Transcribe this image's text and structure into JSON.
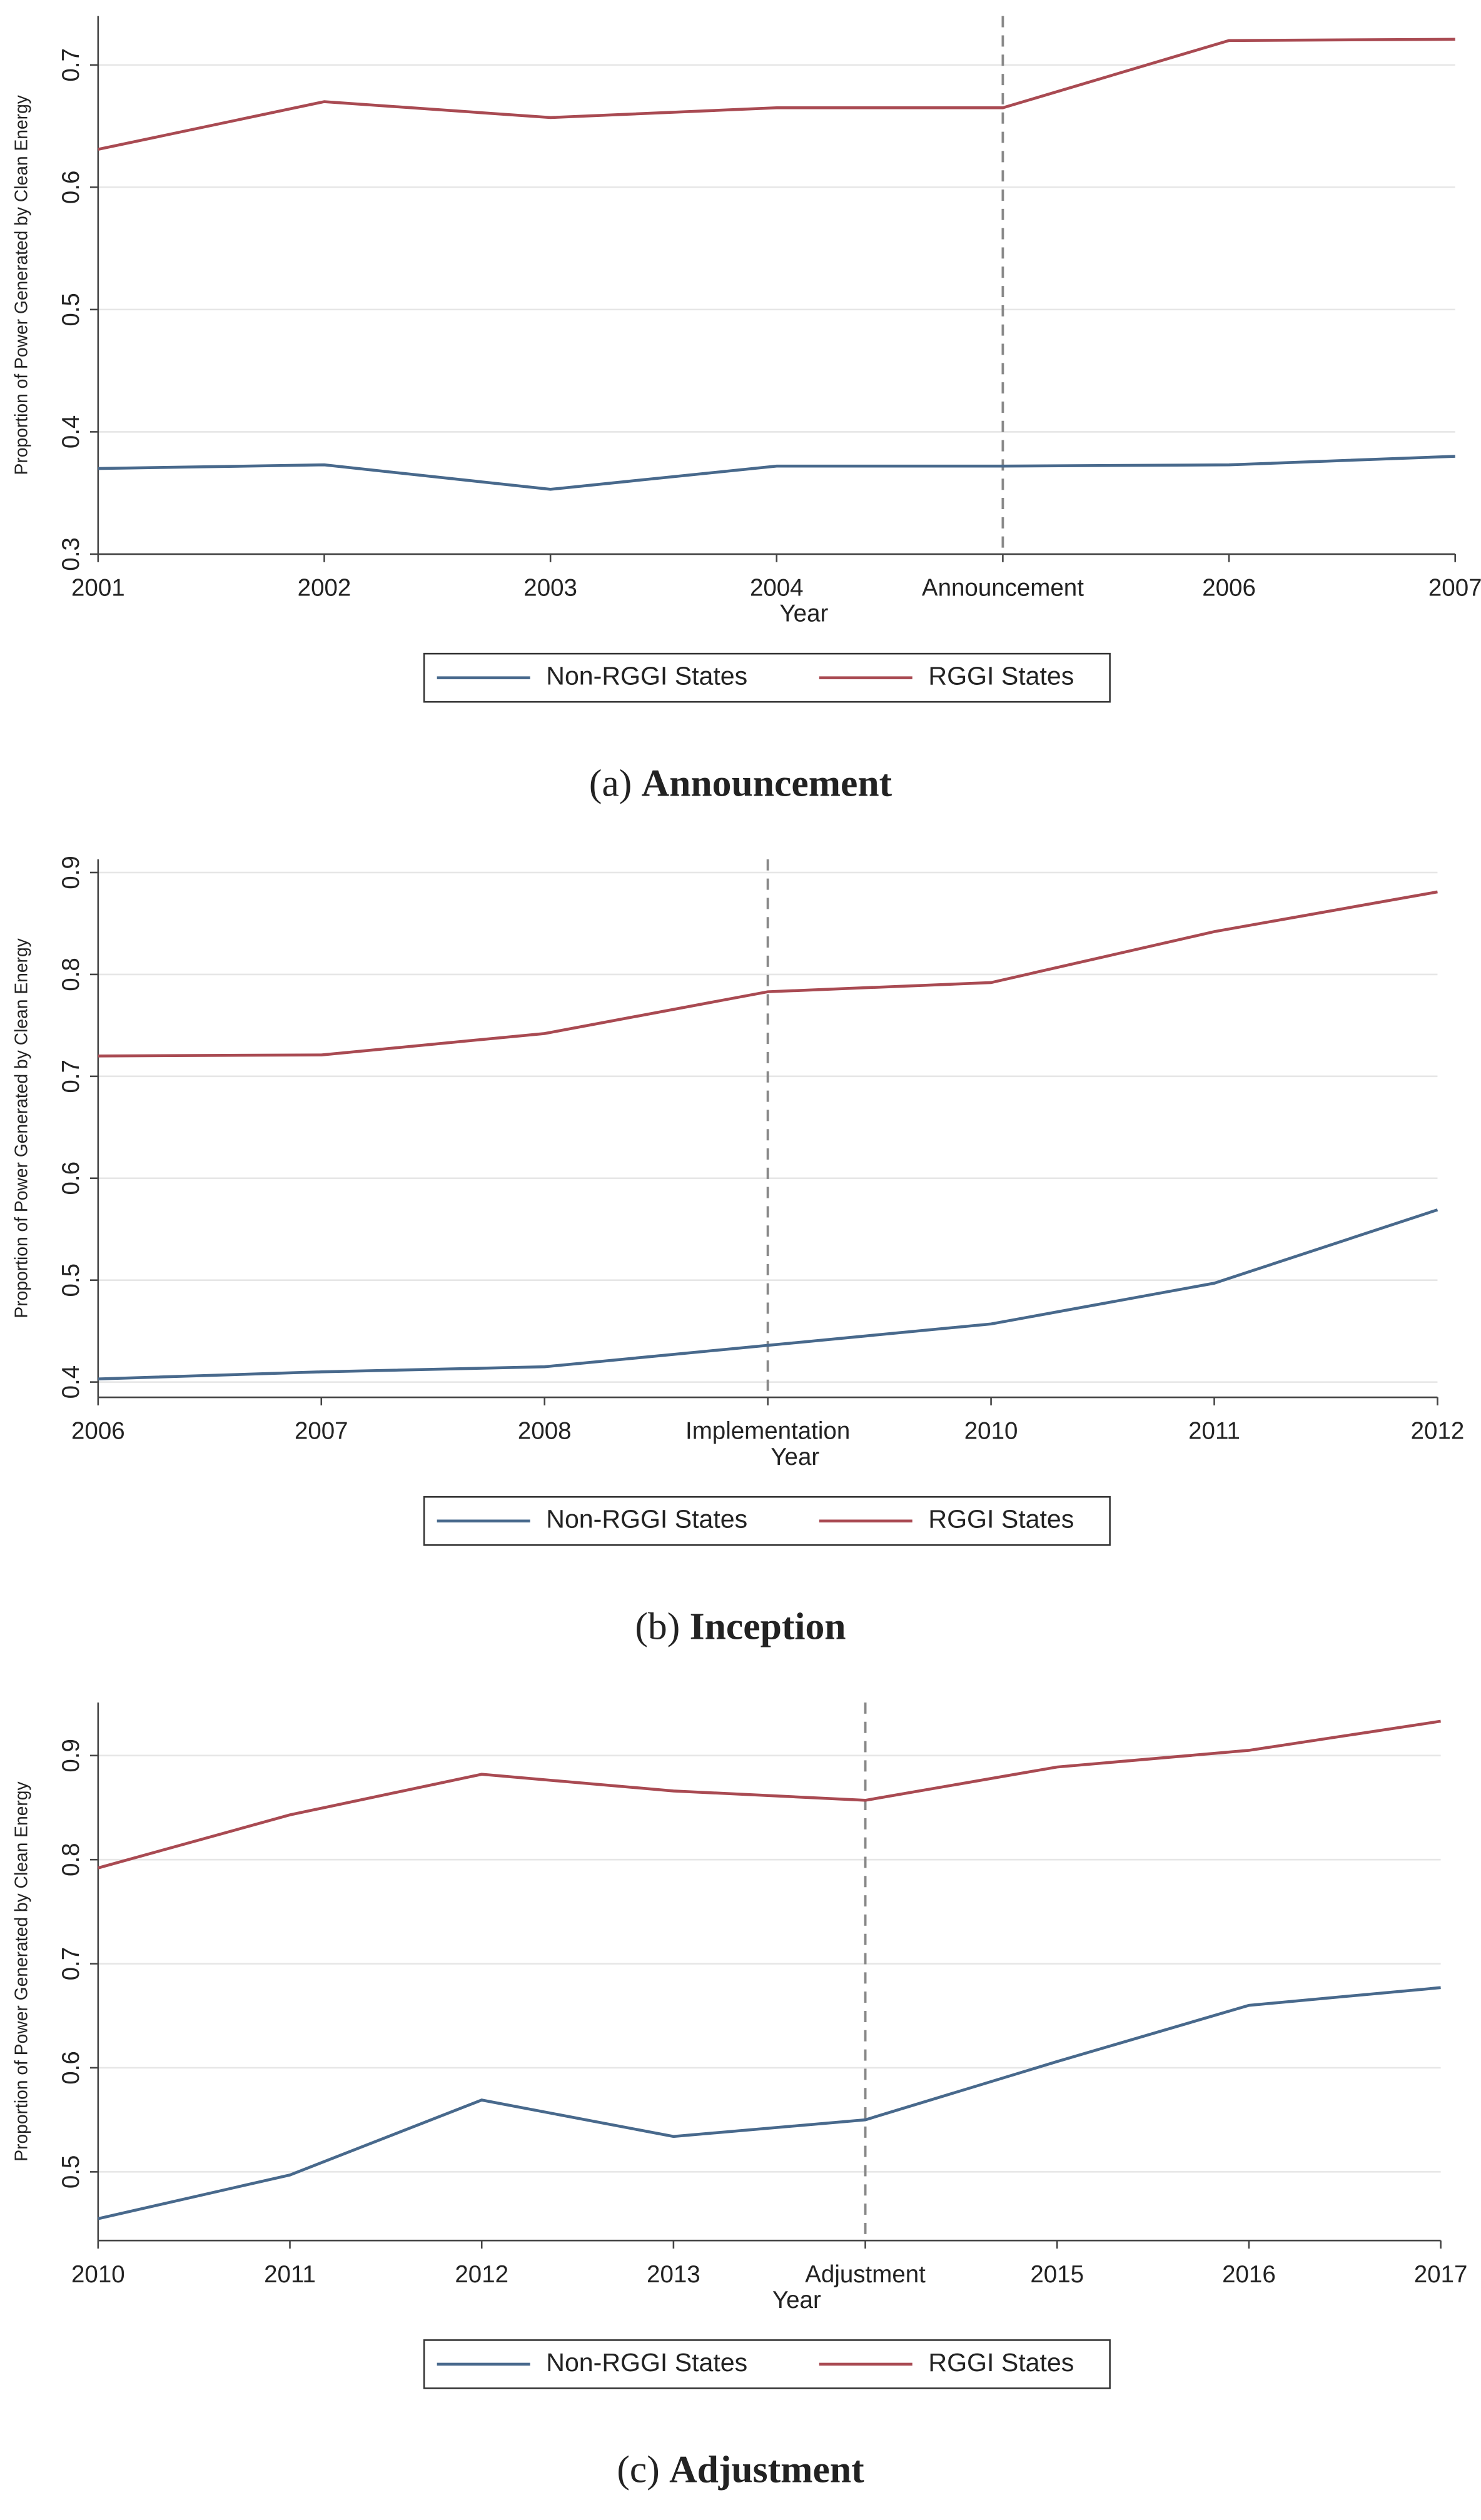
{
  "chart_data": [
    {
      "type": "line",
      "caption_label": "(a)",
      "caption": "Announcement",
      "xlabel": "Year",
      "ylabel": "Proportion of Power Generated by Clean Energy",
      "categories": [
        "2001",
        "2002",
        "2003",
        "2004",
        "Announcement",
        "2006",
        "2007"
      ],
      "vline": "Announcement",
      "ylim": [
        0.3,
        0.74
      ],
      "yticks": [
        0.3,
        0.4,
        0.5,
        0.6,
        0.7
      ],
      "grid": true,
      "series": [
        {
          "name": "Non-RGGI States",
          "color": "#48698c",
          "values": [
            0.37,
            0.373,
            0.353,
            0.372,
            0.372,
            0.373,
            0.38
          ]
        },
        {
          "name": "RGGI States",
          "color": "#a94a52",
          "values": [
            0.631,
            0.67,
            0.657,
            0.665,
            0.665,
            0.72,
            0.721
          ]
        }
      ]
    },
    {
      "type": "line",
      "caption_label": "(b)",
      "caption": "Inception",
      "xlabel": "Year",
      "ylabel": "Proportion of Power Generated by Clean Energy",
      "categories": [
        "2006",
        "2007",
        "2008",
        "Implementation",
        "2010",
        "2011",
        "2012"
      ],
      "vline": "Implementation",
      "ylim": [
        0.385,
        0.913
      ],
      "yticks": [
        0.4,
        0.5,
        0.6,
        0.7,
        0.8,
        0.9
      ],
      "grid": true,
      "series": [
        {
          "name": "Non-RGGI States",
          "color": "#48698c",
          "values": [
            0.403,
            0.41,
            0.415,
            0.436,
            0.457,
            0.497,
            0.569
          ]
        },
        {
          "name": "RGGI States",
          "color": "#a94a52",
          "values": [
            0.72,
            0.721,
            0.742,
            0.783,
            0.792,
            0.842,
            0.881
          ]
        }
      ]
    },
    {
      "type": "line",
      "caption_label": "(c)",
      "caption": "Adjustment",
      "xlabel": "Year",
      "ylabel": "Proportion of Power Generated by Clean Energy",
      "categories": [
        "2010",
        "2011",
        "2012",
        "2013",
        "Adjustment",
        "2015",
        "2016",
        "2017"
      ],
      "vline": "Adjustment",
      "ylim": [
        0.434,
        0.951
      ],
      "yticks": [
        0.5,
        0.6,
        0.7,
        0.8,
        0.9
      ],
      "grid": true,
      "series": [
        {
          "name": "Non-RGGI States",
          "color": "#48698c",
          "values": [
            0.455,
            0.497,
            0.569,
            0.534,
            0.55,
            0.606,
            0.66,
            0.677
          ]
        },
        {
          "name": "RGGI States",
          "color": "#a94a52",
          "values": [
            0.792,
            0.843,
            0.882,
            0.866,
            0.857,
            0.889,
            0.905,
            0.933
          ]
        }
      ]
    }
  ]
}
